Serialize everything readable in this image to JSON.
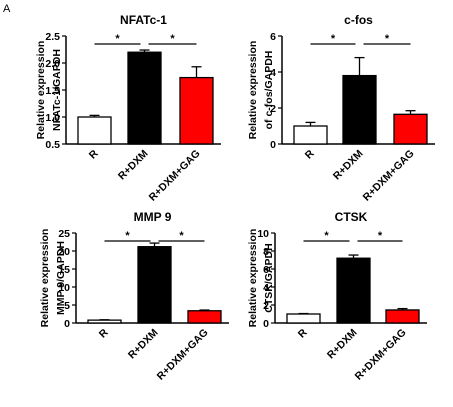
{
  "panel_label": "A",
  "chart_data": [
    {
      "type": "bar",
      "title": "NFATc-1",
      "ylabel_lines": [
        "Relative expression",
        "NFATc-1/GAPDH"
      ],
      "categories": [
        "R",
        "R+DXM",
        "R+DXM+GAG"
      ],
      "values": [
        1.0,
        2.2,
        1.73
      ],
      "errors": [
        0.03,
        0.04,
        0.2
      ],
      "bar_colors": [
        "#ffffff",
        "#000000",
        "#ff0000"
      ],
      "ylim": [
        0.5,
        2.5
      ],
      "yticks": [
        "0.5",
        "1.0",
        "1.5",
        "2.0",
        "2.5"
      ],
      "significance": [
        {
          "from": 0,
          "to": 1,
          "label": "*"
        },
        {
          "from": 1,
          "to": 2,
          "label": "*"
        }
      ]
    },
    {
      "type": "bar",
      "title": "c-fos",
      "ylabel_lines": [
        "Relative expression",
        "of c-fos/GAPDH"
      ],
      "categories": [
        "R",
        "R+DXM",
        "R+DXM+GAG"
      ],
      "values": [
        1.0,
        3.8,
        1.65
      ],
      "errors": [
        0.2,
        1.0,
        0.2
      ],
      "bar_colors": [
        "#ffffff",
        "#000000",
        "#ff0000"
      ],
      "ylim": [
        0,
        6
      ],
      "yticks": [
        "0",
        "2",
        "4",
        "6"
      ],
      "significance": [
        {
          "from": 0,
          "to": 1,
          "label": "*"
        },
        {
          "from": 1,
          "to": 2,
          "label": "*"
        }
      ]
    },
    {
      "type": "bar",
      "title": "MMP 9",
      "ylabel_lines": [
        "Relative expression",
        "MMP 9/GAPDH"
      ],
      "categories": [
        "R",
        "R+DXM",
        "R+DXM+GAG"
      ],
      "values": [
        0.8,
        21.2,
        3.4
      ],
      "errors": [
        0.1,
        1.0,
        0.2
      ],
      "bar_colors": [
        "#ffffff",
        "#000000",
        "#ff0000"
      ],
      "ylim": [
        0,
        25
      ],
      "yticks": [
        "0",
        "5",
        "10",
        "15",
        "20",
        "25"
      ],
      "significance": [
        {
          "from": 0,
          "to": 1,
          "label": "*"
        },
        {
          "from": 1,
          "to": 2,
          "label": "*"
        }
      ]
    },
    {
      "type": "bar",
      "title": "CTSK",
      "ylabel_lines": [
        "Relative expression",
        "CTSK/GAPDH"
      ],
      "categories": [
        "R",
        "R+DXM",
        "R+DXM+GAG"
      ],
      "values": [
        1.0,
        7.2,
        1.45
      ],
      "errors": [
        0.05,
        0.35,
        0.15
      ],
      "bar_colors": [
        "#ffffff",
        "#000000",
        "#ff0000"
      ],
      "ylim": [
        0,
        10
      ],
      "yticks": [
        "0",
        "2",
        "4",
        "6",
        "8",
        "10"
      ],
      "significance": [
        {
          "from": 0,
          "to": 1,
          "label": "*"
        },
        {
          "from": 1,
          "to": 2,
          "label": "*"
        }
      ]
    }
  ]
}
